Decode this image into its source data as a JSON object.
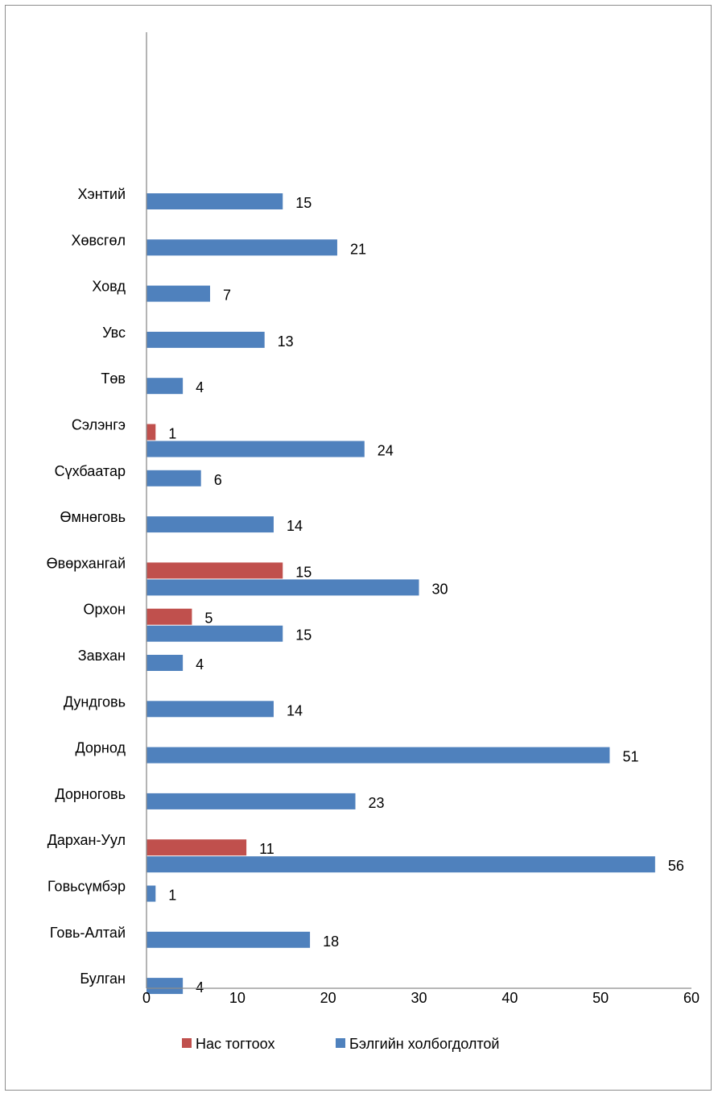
{
  "chart_data": {
    "type": "bar",
    "orientation": "horizontal",
    "categories": [
      "Булган",
      "Говь-Алтай",
      "Говьсүмбэр",
      "Дархан-Уул",
      "Дорноговь",
      "Дорнод",
      "Дундговь",
      "Завхан",
      "Орхон",
      "Өвөрхангай",
      "Өмнөговь",
      "Сүхбаатар",
      "Сэлэнгэ",
      "Төв",
      "Увс",
      "Ховд",
      "Хөвсгөл",
      "Хэнтий"
    ],
    "series": [
      {
        "name": "Нас тогтоох",
        "color": "#c0504d",
        "values": [
          null,
          null,
          null,
          11,
          null,
          null,
          null,
          null,
          5,
          15,
          null,
          null,
          1,
          null,
          null,
          null,
          null,
          null
        ]
      },
      {
        "name": "Бэлгийн холбогдолтой",
        "color": "#4f81bd",
        "values": [
          4,
          18,
          1,
          56,
          23,
          51,
          14,
          4,
          15,
          30,
          14,
          6,
          24,
          4,
          13,
          7,
          21,
          15
        ]
      }
    ],
    "xlim": [
      0,
      60
    ],
    "xticks": [
      "0",
      "10",
      "20",
      "30",
      "40",
      "50",
      "60"
    ],
    "grid": false,
    "legend_position": "bottom"
  }
}
